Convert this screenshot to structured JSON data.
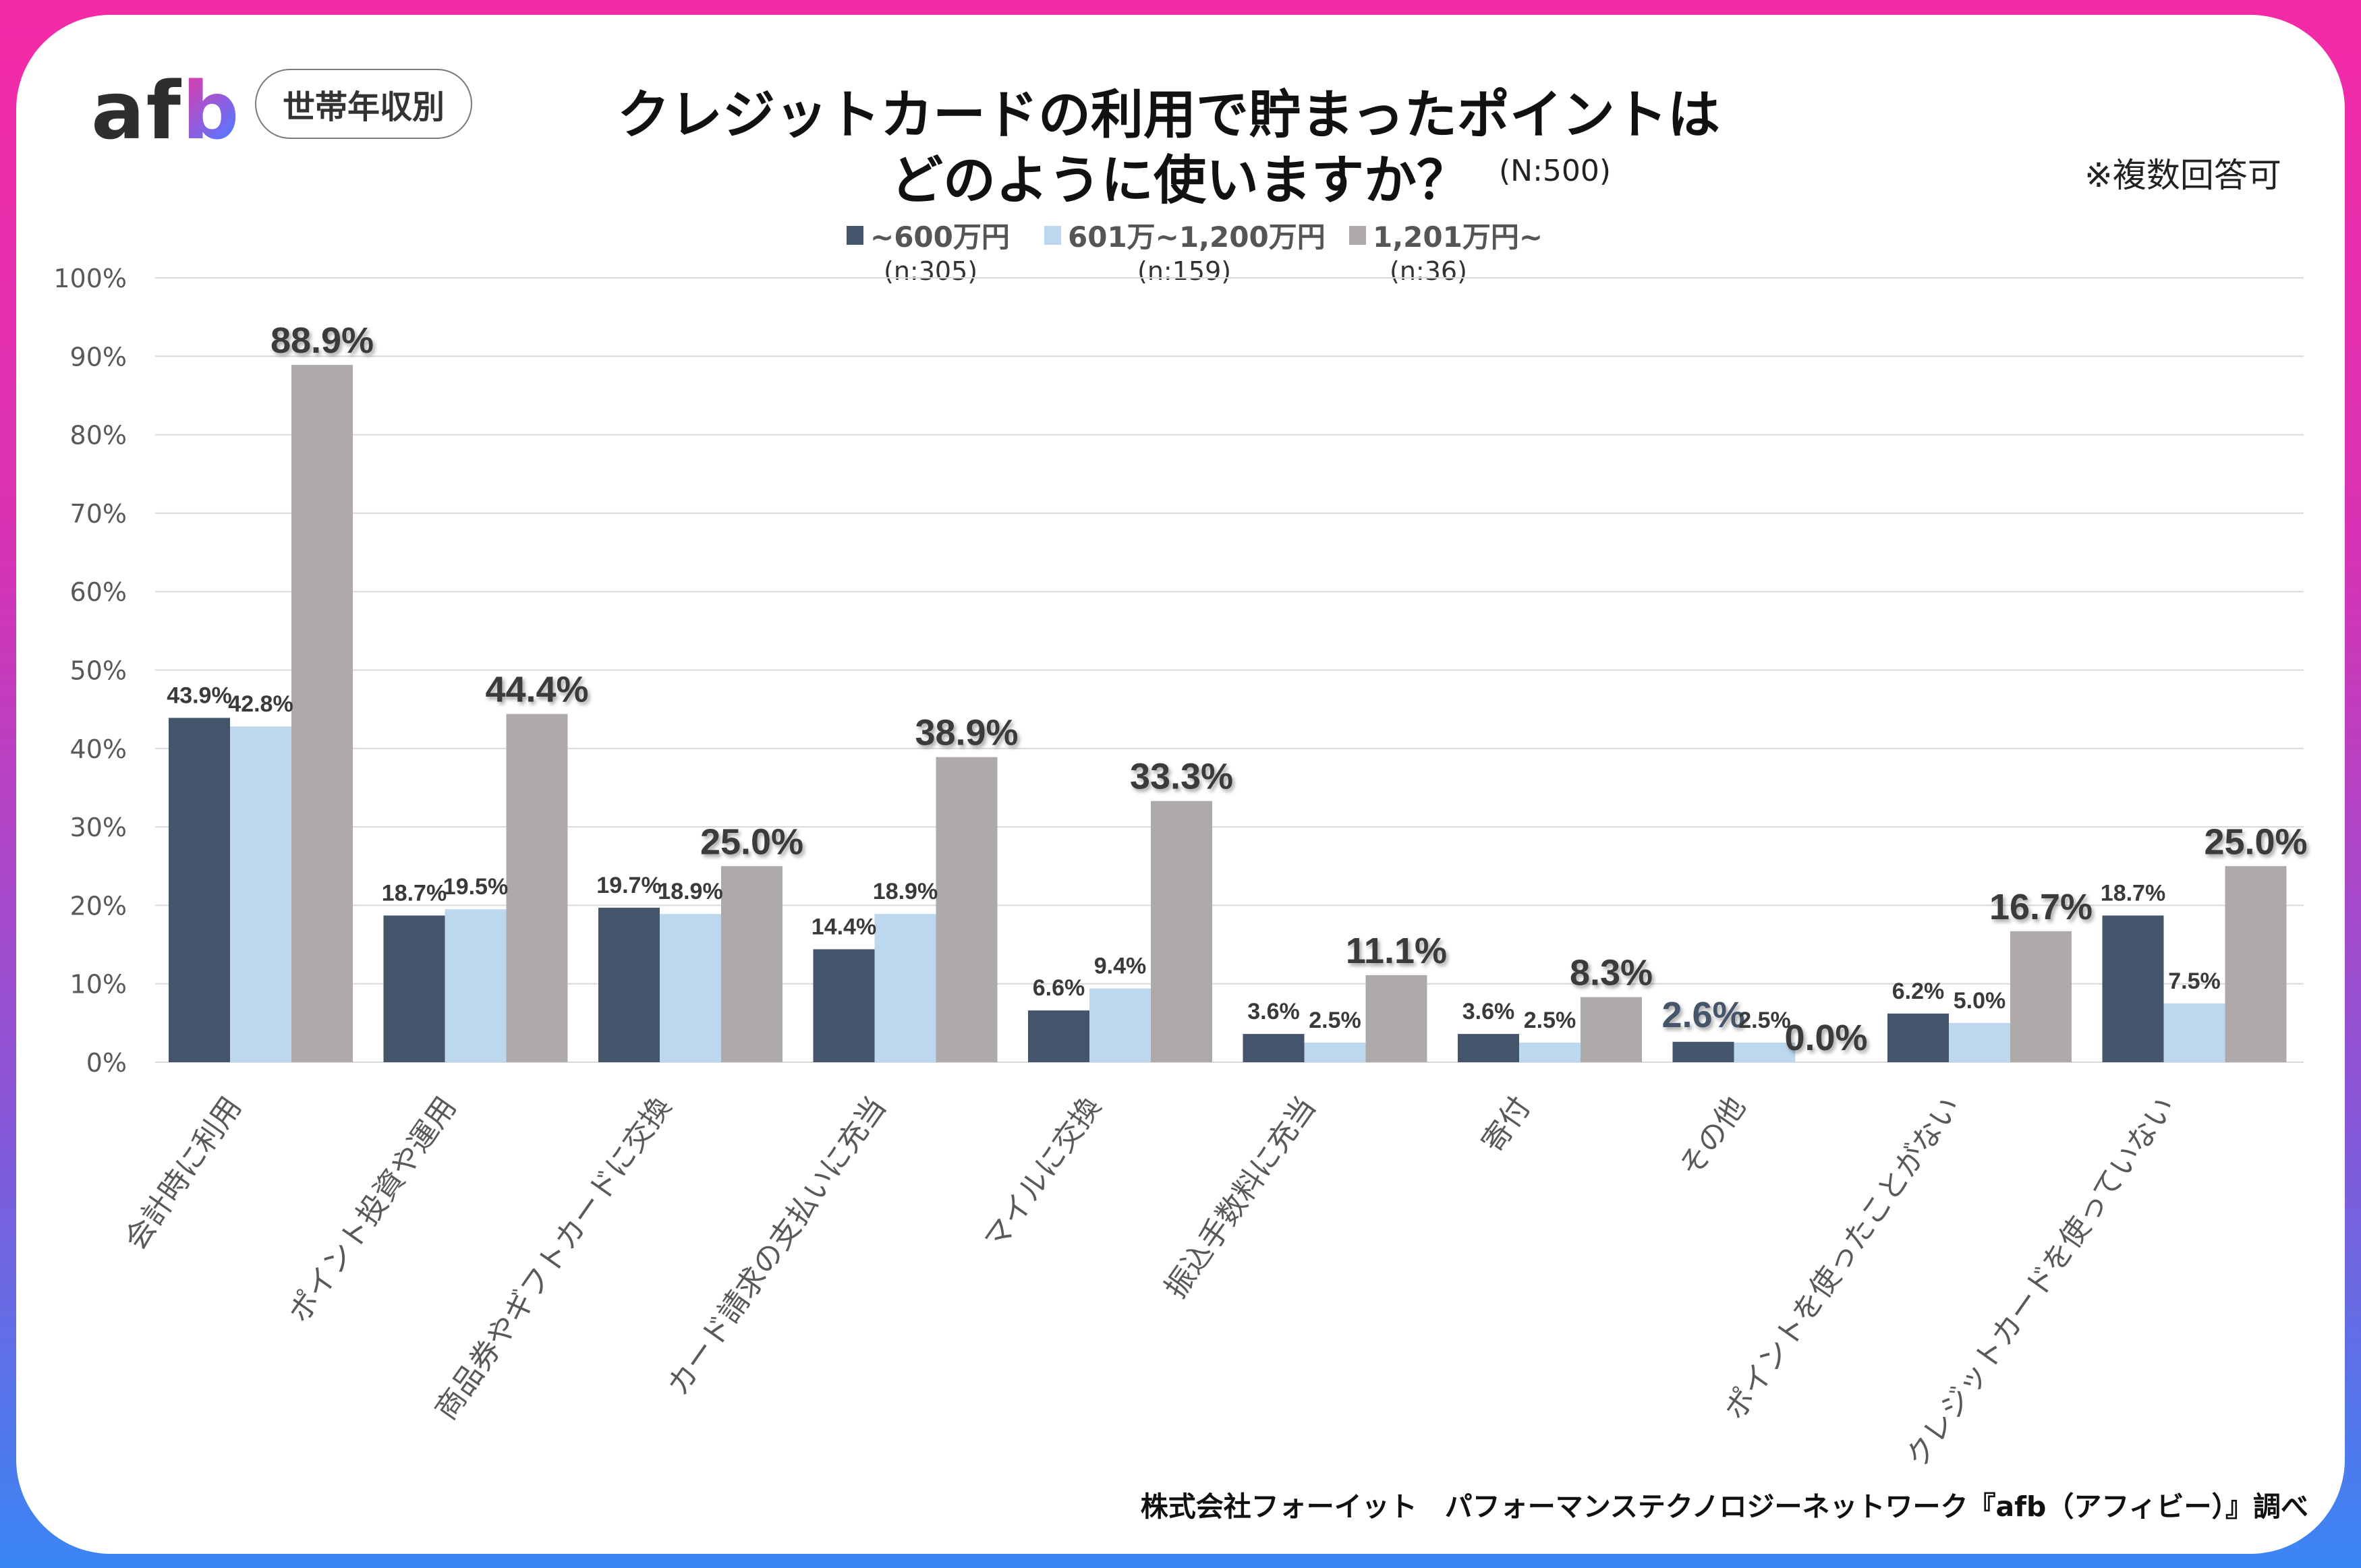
{
  "brand": {
    "logo_a": "af",
    "logo_b": "b",
    "tag": "世帯年収別"
  },
  "header": {
    "title_line1": "クレジットカードの利用で貯まったポイントは",
    "title_line2": "どのように使いますか？",
    "sample_size": "(N:500)",
    "note": "※複数回答可"
  },
  "footer": {
    "source": "株式会社フォーイット　パフォーマンステクノロジーネットワーク『afb（アフィビー）』調べ"
  },
  "colors": {
    "series1": "#44546a",
    "series2": "#bdd7ee",
    "series3": "#aeaaaa",
    "grid": "#d9d9d9",
    "axis_text": "#595959",
    "label_text": "#3a3a3a"
  },
  "chart_data": {
    "type": "bar",
    "title": "クレジットカードの利用で貯まったポイントはどのように使いますか？",
    "xlabel": "",
    "ylabel": "",
    "ylim": [
      0,
      100
    ],
    "yticks": [
      "0%",
      "10%",
      "20%",
      "30%",
      "40%",
      "50%",
      "60%",
      "70%",
      "80%",
      "90%",
      "100%"
    ],
    "grid": true,
    "legend_position": "top",
    "categories": [
      "会計時に利用",
      "ポイント投資や運用",
      "商品券やギフトカードに交換",
      "カード請求の支払いに充当",
      "マイルに交換",
      "振込手数料に充当",
      "寄付",
      "その他",
      "ポイントを使ったことがない",
      "クレジットカードを使っていない"
    ],
    "series": [
      {
        "name": "~600万円",
        "n": "(n:305)",
        "values": [
          43.9,
          18.7,
          19.7,
          14.4,
          6.6,
          3.6,
          3.6,
          2.6,
          6.2,
          18.7
        ]
      },
      {
        "name": "601万~1,200万円",
        "n": "(n:159)",
        "values": [
          42.8,
          19.5,
          18.9,
          18.9,
          9.4,
          2.5,
          2.5,
          2.5,
          5.0,
          7.5
        ]
      },
      {
        "name": "1,201万円~",
        "n": "(n:36)",
        "values": [
          88.9,
          44.4,
          25.0,
          38.9,
          33.3,
          11.1,
          8.3,
          0.0,
          16.7,
          25.0
        ]
      }
    ]
  }
}
